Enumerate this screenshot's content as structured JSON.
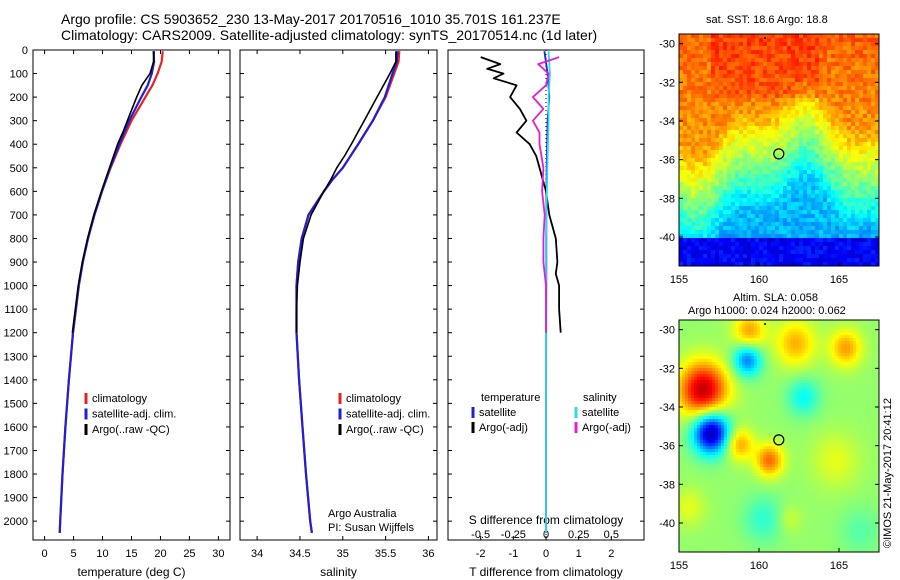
{
  "header": {
    "title_line1": "Argo profile: CS 5903652_230 13-May-2017 20170516_1010 35.701S 161.237E",
    "title_line2": "Climatology: CARS2009. Satellite-adjusted climatology: synTS_20170514.nc (1d later)"
  },
  "side": {
    "map1_title": "sat. SST: 18.6 Argo: 18.8",
    "map2_title1": "Altim. SLA: 0.058",
    "map2_title2": "Argo h1000: 0.024 h2000: 0.062",
    "credit": "©IMOS 21-May-2017 20:41:12"
  },
  "colors": {
    "climatology": "#e8231f",
    "satellite": "#1f1fd6",
    "argo": "#000000",
    "sal_satellite": "#2fd7f0",
    "sal_argo": "#e020d8"
  },
  "chart_data": [
    {
      "type": "line",
      "name": "temperature profile",
      "xlabel": "temperature (deg C)",
      "ylabel": "",
      "xlim": [
        -2,
        32
      ],
      "ylim": [
        2080,
        0
      ],
      "xticks": [
        0,
        5,
        10,
        15,
        20,
        25,
        30
      ],
      "yticks": [
        0,
        100,
        200,
        300,
        400,
        500,
        600,
        700,
        800,
        900,
        1000,
        1100,
        1200,
        1300,
        1400,
        1500,
        1600,
        1700,
        1800,
        1900,
        2000
      ],
      "legend": [
        "climatology",
        "satellite-adj. clim.",
        "Argo(..raw -QC)"
      ],
      "series": [
        {
          "name": "climatology",
          "depth": [
            5,
            50,
            100,
            150,
            200,
            300,
            400,
            500,
            600,
            700,
            800,
            900,
            1000,
            1200,
            1400,
            1600,
            1800,
            2000,
            2050
          ],
          "values": [
            20.4,
            20.2,
            19.5,
            18.6,
            17.4,
            15.0,
            13.1,
            11.4,
            9.9,
            8.6,
            7.5,
            6.6,
            5.9,
            4.9,
            4.2,
            3.6,
            3.1,
            2.7,
            2.6
          ]
        },
        {
          "name": "satellite-adj. clim.",
          "depth": [
            5,
            50,
            100,
            150,
            200,
            300,
            400,
            500,
            600,
            700,
            800,
            900,
            1000,
            1200,
            1400,
            1600,
            1800,
            2000,
            2050
          ],
          "values": [
            18.8,
            18.9,
            18.5,
            17.8,
            16.7,
            14.6,
            12.9,
            11.3,
            9.9,
            8.6,
            7.5,
            6.6,
            5.9,
            4.9,
            4.2,
            3.6,
            3.1,
            2.7,
            2.6
          ]
        },
        {
          "name": "Argo(..raw -QC)",
          "depth": [
            5,
            50,
            100,
            150,
            200,
            300,
            350,
            400,
            500,
            600,
            700,
            800,
            900,
            1000,
            1100,
            1200
          ],
          "values": [
            18.9,
            18.8,
            18.2,
            16.8,
            15.9,
            14.3,
            13.5,
            12.6,
            11.2,
            9.8,
            8.5,
            7.4,
            6.5,
            5.8,
            5.3,
            4.8
          ]
        }
      ]
    },
    {
      "type": "line",
      "name": "salinity profile",
      "xlabel": "salinity",
      "xlim": [
        33.8,
        36.1
      ],
      "ylim": [
        2080,
        0
      ],
      "xticks": [
        34,
        34.5,
        35,
        35.5,
        36
      ],
      "legend": [
        "climatology",
        "satellite-adj. clim.",
        "Argo(..raw -QC)"
      ],
      "annotation": [
        "Argo Australia",
        "PI: Susan Wijffels"
      ],
      "series": [
        {
          "name": "climatology",
          "depth": [
            5,
            50,
            100,
            200,
            300,
            400,
            500,
            550,
            600,
            700,
            800,
            900,
            1000,
            1200,
            1400,
            1600,
            1800,
            2000,
            2050
          ],
          "values": [
            35.66,
            35.65,
            35.6,
            35.5,
            35.35,
            35.18,
            35.0,
            34.88,
            34.78,
            34.6,
            34.52,
            34.48,
            34.46,
            34.46,
            34.49,
            34.53,
            34.57,
            34.62,
            34.64
          ]
        },
        {
          "name": "satellite-adj. clim.",
          "depth": [
            5,
            50,
            100,
            200,
            300,
            400,
            500,
            550,
            600,
            700,
            800,
            900,
            1000,
            1200,
            1400,
            1600,
            1800,
            2000,
            2050
          ],
          "values": [
            35.64,
            35.63,
            35.58,
            35.49,
            35.35,
            35.18,
            35.0,
            34.88,
            34.78,
            34.6,
            34.52,
            34.48,
            34.46,
            34.46,
            34.49,
            34.53,
            34.57,
            34.62,
            34.64
          ]
        },
        {
          "name": "Argo(..raw -QC)",
          "depth": [
            5,
            50,
            100,
            200,
            300,
            400,
            450,
            500,
            550,
            600,
            700,
            800,
            900,
            1000,
            1100,
            1200
          ],
          "values": [
            35.62,
            35.62,
            35.55,
            35.4,
            35.25,
            35.1,
            35.02,
            34.93,
            34.86,
            34.78,
            34.63,
            34.54,
            34.5,
            34.47,
            34.46,
            34.46
          ]
        }
      ]
    },
    {
      "type": "line",
      "name": "difference from climatology",
      "xlabel": "T difference from climatology",
      "xlabel2": "S difference from climatology",
      "xlim": [
        -3,
        3
      ],
      "ylim": [
        2080,
        0
      ],
      "xticks": [
        -2,
        -1,
        0,
        1,
        2
      ],
      "xticks_top": [
        "-0.5",
        "-0.25",
        "0",
        "0.25",
        "0.5"
      ],
      "legend_left_title": "temperature",
      "legend_right_title": "salinity",
      "legend": [
        "satellite",
        "Argo(-adj)",
        "satellite",
        "Argo(-adj)"
      ],
      "series": [
        {
          "name": "T satellite",
          "depth": [
            5,
            100,
            200,
            300,
            500,
            700,
            1000,
            1500,
            2000,
            2050
          ],
          "values": [
            -0.05,
            0.05,
            0.1,
            0.05,
            0.02,
            0.01,
            0.01,
            0.0,
            0.0,
            0.0
          ]
        },
        {
          "name": "T Argo(-adj)",
          "depth": [
            30,
            60,
            80,
            100,
            120,
            150,
            200,
            250,
            300,
            350,
            400,
            450,
            500,
            600,
            700,
            800,
            900,
            950,
            1000,
            1100,
            1200
          ],
          "values": [
            -2.0,
            -1.4,
            -1.8,
            -1.3,
            -1.6,
            -0.9,
            -1.1,
            -0.8,
            -0.6,
            -0.9,
            -0.5,
            -0.3,
            -0.2,
            0.0,
            0.1,
            0.3,
            0.35,
            0.3,
            0.4,
            0.4,
            0.45
          ]
        },
        {
          "name": "S satellite",
          "depth": [
            5,
            100,
            200,
            300,
            500,
            800,
            1200,
            1600,
            2000,
            2050
          ],
          "values": [
            0.02,
            0.03,
            0.02,
            0.02,
            0.01,
            0.0,
            0.0,
            0.0,
            0.0,
            0.0
          ]
        },
        {
          "name": "S Argo(-adj)",
          "depth": [
            30,
            60,
            100,
            150,
            200,
            250,
            300,
            350,
            400,
            500,
            600,
            700,
            800,
            900,
            1000,
            1100,
            1200
          ],
          "values": [
            0.1,
            -0.06,
            0.02,
            0.0,
            -0.1,
            -0.02,
            -0.1,
            -0.05,
            -0.05,
            -0.02,
            -0.03,
            -0.01,
            -0.02,
            -0.02,
            0.0,
            0.0,
            0.0
          ]
        }
      ]
    },
    {
      "type": "heatmap",
      "name": "sat. SST map",
      "xlim": [
        155,
        167.5
      ],
      "ylim": [
        -41.5,
        -29.5
      ],
      "xticks": [
        155,
        160,
        165
      ],
      "yticks": [
        -30,
        -32,
        -34,
        -36,
        -38,
        -40
      ],
      "marker": {
        "lon": 161.237,
        "lat": -35.701
      }
    },
    {
      "type": "heatmap",
      "name": "Altim. SLA map",
      "xlim": [
        155,
        167.5
      ],
      "ylim": [
        -41.5,
        -29.5
      ],
      "xticks": [
        155,
        160,
        165
      ],
      "yticks": [
        -30,
        -32,
        -34,
        -36,
        -38,
        -40
      ],
      "marker": {
        "lon": 161.237,
        "lat": -35.701
      }
    }
  ]
}
